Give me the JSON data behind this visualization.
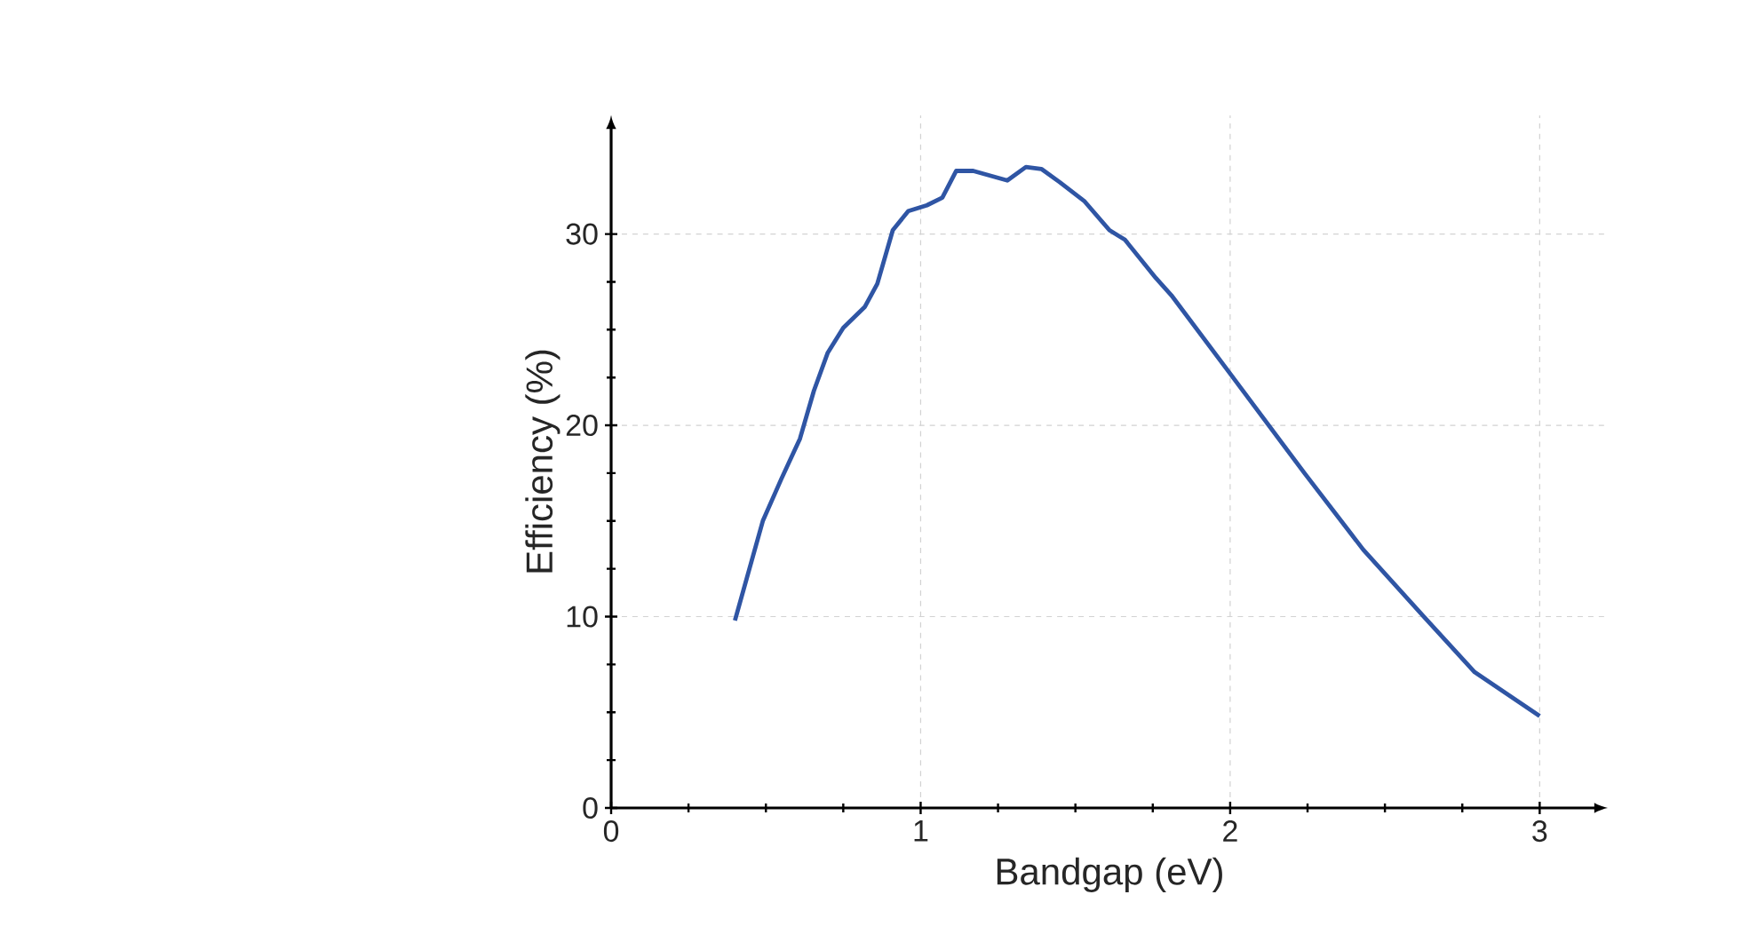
{
  "chart_data": {
    "type": "line",
    "xlabel": "Bandgap (eV)",
    "ylabel": "Efficiency (%)",
    "x": [
      0.4,
      0.49,
      0.55,
      0.61,
      0.655,
      0.7,
      0.75,
      0.82,
      0.86,
      0.91,
      0.96,
      1.02,
      1.07,
      1.115,
      1.17,
      1.28,
      1.34,
      1.39,
      1.45,
      1.53,
      1.61,
      1.64,
      1.66,
      1.76,
      1.81,
      2.0,
      2.24,
      2.43,
      2.62,
      2.79,
      3.0
    ],
    "values": [
      9.8,
      15.0,
      17.2,
      19.3,
      21.8,
      23.8,
      25.1,
      26.2,
      27.4,
      30.2,
      31.2,
      31.5,
      31.9,
      33.3,
      33.3,
      32.8,
      33.5,
      33.4,
      32.7,
      31.7,
      30.2,
      29.9,
      29.7,
      27.7,
      26.8,
      22.7,
      17.5,
      13.5,
      10.1,
      7.1,
      4.8
    ],
    "color": "#2f55a4",
    "xlim": [
      0,
      3.22
    ],
    "ylim": [
      0,
      36.2
    ],
    "xticks": [
      0,
      1,
      2,
      3
    ],
    "yticks": [
      0,
      10,
      20,
      30
    ],
    "grid": true
  }
}
